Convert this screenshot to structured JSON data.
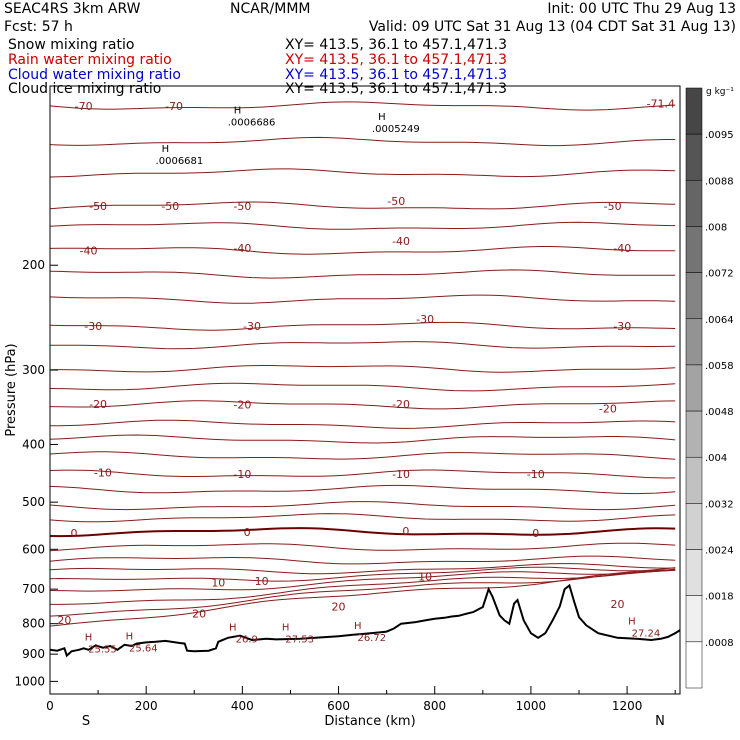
{
  "header": {
    "model": "SEAC4RS  3km ARW",
    "org": "NCAR/MMM",
    "init": "Init: 00 UTC Thu 29 Aug 13",
    "fcst": "Fcst:   57 h",
    "valid": "Valid: 09 UTC Sat 31 Aug 13 (04 CDT Sat 31 Aug 13)",
    "fields": [
      {
        "label": "Snow mixing ratio",
        "xy": "XY= 413.5, 36.1 to 457.1,471.3",
        "color": "#000000"
      },
      {
        "label": "Rain water mixing ratio",
        "xy": "XY= 413.5, 36.1 to 457.1,471.3",
        "color": "#cc0000"
      },
      {
        "label": "Cloud water mixing ratio",
        "xy": "XY= 413.5, 36.1 to 457.1,471.3",
        "color": "#0000cc"
      },
      {
        "label": "Cloud ice mixing ratio",
        "xy": "XY= 413.5, 36.1 to 457.1,471.3",
        "color": "#000000"
      }
    ]
  },
  "colors": {
    "isotherm": "#8b1a1a",
    "zero_isotherm": "#6b0000",
    "terrain": "#000000"
  },
  "chart_data": {
    "type": "line",
    "xlabel": "Distance (km)",
    "ylabel": "Pressure (hPa)",
    "xlim": [
      0,
      1310
    ],
    "ylim": [
      1050,
      100
    ],
    "y_scale": "log",
    "x_ticks": [
      "0",
      "200",
      "400",
      "600",
      "800",
      "1000",
      "1200"
    ],
    "y_ticks": [
      "200",
      "300",
      "400",
      "500",
      "600",
      "700",
      "800",
      "900",
      "1000"
    ],
    "x_end_labels": {
      "left": "S",
      "right": "N"
    },
    "colorbar": {
      "unit": "g kg⁻¹",
      "labels": [
        ".0095",
        ".0088",
        ".008",
        ".0072",
        ".0064",
        ".0058",
        ".0048",
        ".004",
        ".0032",
        ".0024",
        ".0018",
        ".0008"
      ]
    },
    "isotherm_labels": [
      {
        "text": "-70",
        "x": 258,
        "p": 108
      },
      {
        "text": "-70",
        "x": 70,
        "p": 108
      },
      {
        "text": "-71.4",
        "x": 1270,
        "p": 107
      },
      {
        "text": "-50",
        "x": 100,
        "p": 159
      },
      {
        "text": "-50",
        "x": 250,
        "p": 159
      },
      {
        "text": "-50",
        "x": 400,
        "p": 159
      },
      {
        "text": "-50",
        "x": 720,
        "p": 156
      },
      {
        "text": "-50",
        "x": 1170,
        "p": 159
      },
      {
        "text": "-40",
        "x": 80,
        "p": 189
      },
      {
        "text": "-40",
        "x": 400,
        "p": 187
      },
      {
        "text": "-40",
        "x": 730,
        "p": 182
      },
      {
        "text": "-40",
        "x": 1190,
        "p": 187
      },
      {
        "text": "-30",
        "x": 90,
        "p": 253
      },
      {
        "text": "-30",
        "x": 420,
        "p": 253
      },
      {
        "text": "-30",
        "x": 780,
        "p": 246
      },
      {
        "text": "-30",
        "x": 1190,
        "p": 253
      },
      {
        "text": "-20",
        "x": 100,
        "p": 342
      },
      {
        "text": "-20",
        "x": 400,
        "p": 343
      },
      {
        "text": "-20",
        "x": 730,
        "p": 342
      },
      {
        "text": "-20",
        "x": 1160,
        "p": 348
      },
      {
        "text": "-10",
        "x": 110,
        "p": 446
      },
      {
        "text": "-10",
        "x": 400,
        "p": 448
      },
      {
        "text": "-10",
        "x": 730,
        "p": 448
      },
      {
        "text": "-10",
        "x": 1010,
        "p": 448
      },
      {
        "text": "0",
        "x": 50,
        "p": 563
      },
      {
        "text": "0",
        "x": 410,
        "p": 561
      },
      {
        "text": "0",
        "x": 740,
        "p": 559
      },
      {
        "text": "0",
        "x": 1010,
        "p": 563
      },
      {
        "text": "10",
        "x": 350,
        "p": 682
      },
      {
        "text": "10",
        "x": 440,
        "p": 678
      },
      {
        "text": "10",
        "x": 780,
        "p": 666
      },
      {
        "text": "20",
        "x": 30,
        "p": 788
      },
      {
        "text": "20",
        "x": 310,
        "p": 769
      },
      {
        "text": "20",
        "x": 600,
        "p": 749
      },
      {
        "text": "20",
        "x": 1180,
        "p": 741
      }
    ],
    "extrema": [
      {
        "mark": "H",
        "value": "25.55",
        "x": 80,
        "p": 860
      },
      {
        "mark": "H",
        "value": "25.64",
        "x": 165,
        "p": 857
      },
      {
        "mark": "H",
        "value": "26.9",
        "x": 380,
        "p": 827
      },
      {
        "mark": "H",
        "value": "27.53",
        "x": 490,
        "p": 827
      },
      {
        "mark": "H",
        "value": "26.72",
        "x": 640,
        "p": 823
      },
      {
        "mark": "H",
        "value": "27.24",
        "x": 1210,
        "p": 808
      },
      {
        "mark": "H",
        "value": ".0006686",
        "x": 390,
        "p": 112
      },
      {
        "mark": "H",
        "value": ".0006681",
        "x": 240,
        "p": 130
      },
      {
        "mark": "H",
        "value": ".0005249",
        "x": 690,
        "p": 115
      }
    ]
  }
}
